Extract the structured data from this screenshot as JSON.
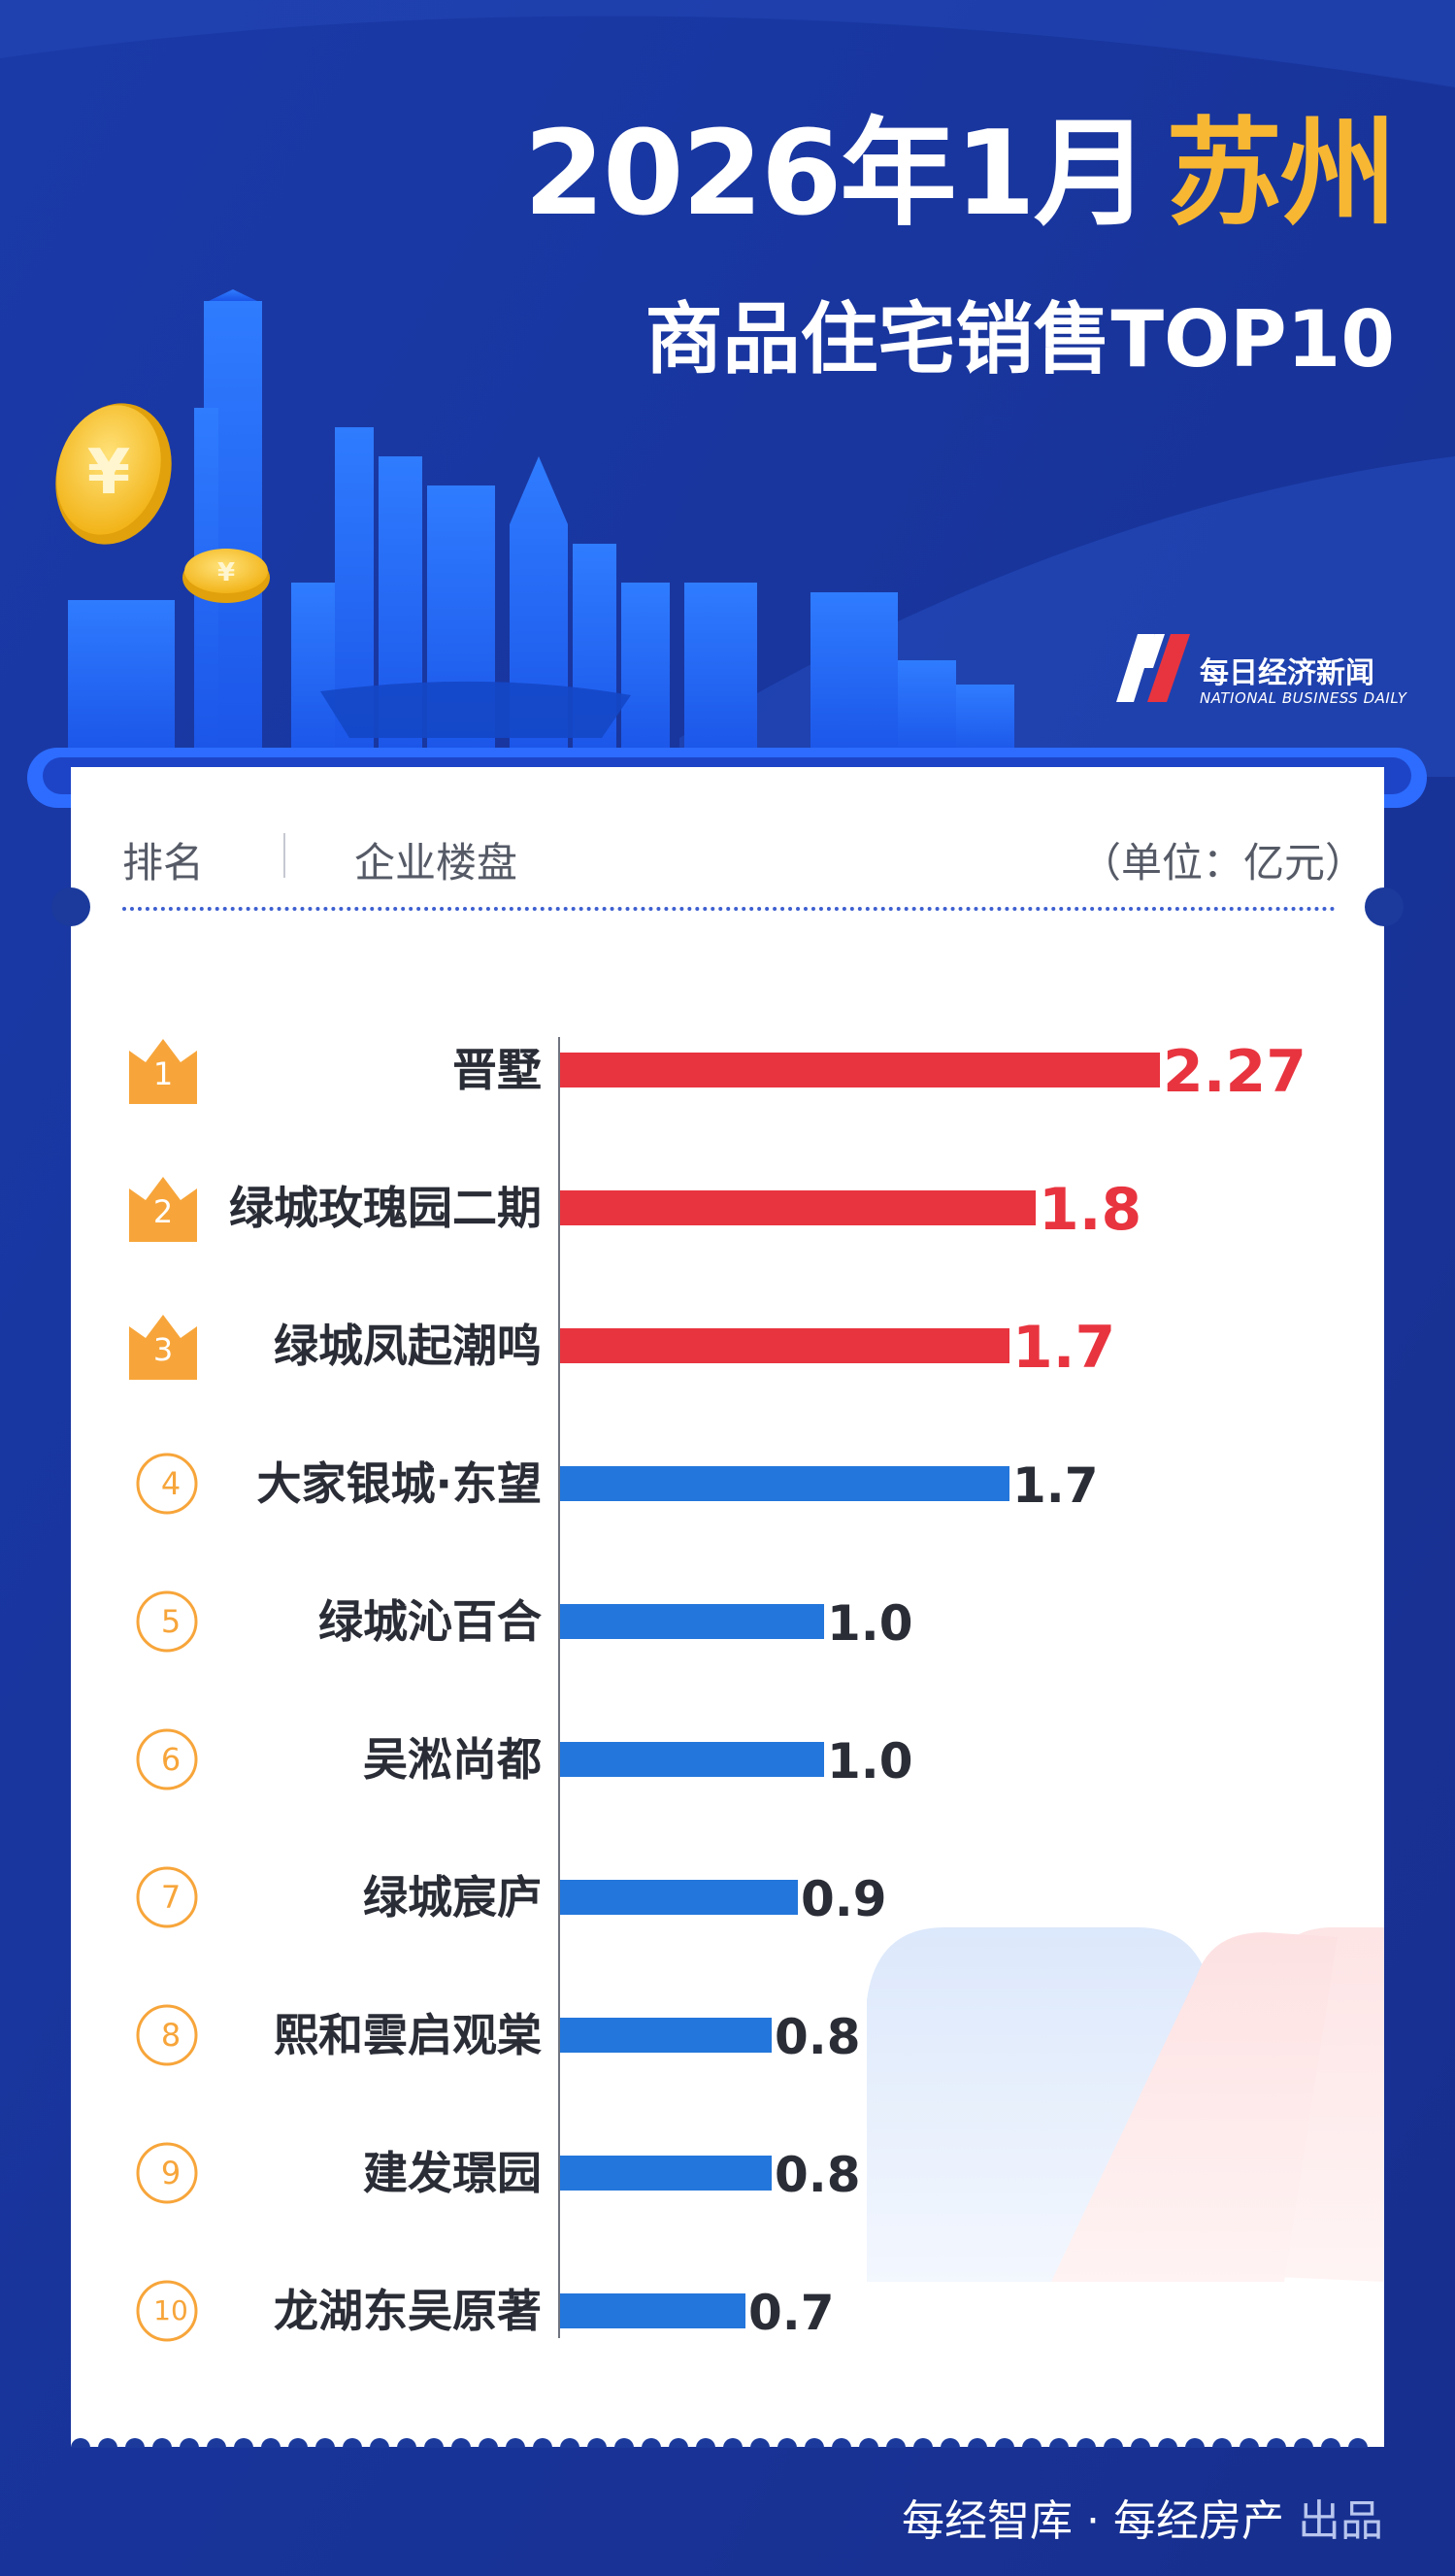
{
  "header": {
    "title_year_month": "2026年1月",
    "title_city": "苏州",
    "subtitle": "商品住宅销售TOP10"
  },
  "brand": {
    "name_cn": "每日经济新闻",
    "name_en": "NATIONAL BUSINESS DAILY"
  },
  "table_header": {
    "rank_label": "排名",
    "name_label": "企业楼盘",
    "unit_label": "（单位：亿元）"
  },
  "footer": {
    "credit": "每经智库 · 每经房产",
    "suffix": "出品"
  },
  "colors": {
    "top3_bar": "#e8343f",
    "other_bar": "#2376db",
    "crown": "#f7a53a",
    "rank_circle": "#f7a53a",
    "background": "#1b3a9c"
  },
  "chart_data": {
    "type": "bar",
    "orientation": "horizontal",
    "title": "2026年1月苏州商品住宅销售TOP10",
    "unit": "亿元",
    "categories": [
      "晋墅",
      "绿城玫瑰园二期",
      "绿城凤起潮鸣",
      "大家银城·东望",
      "绿城沁百合",
      "吴淞尚都",
      "绿城宸庐",
      "熙和雲启观棠",
      "建发璟园",
      "龙湖东吴原著"
    ],
    "ranks": [
      "1",
      "2",
      "3",
      "4",
      "5",
      "6",
      "7",
      "8",
      "9",
      "10"
    ],
    "values": [
      2.27,
      1.8,
      1.7,
      1.7,
      1.0,
      1.0,
      0.9,
      0.8,
      0.8,
      0.7
    ],
    "value_labels": [
      "2.27",
      "1.8",
      "1.7",
      "1.7",
      "1.0",
      "1.0",
      "0.9",
      "0.8",
      "0.8",
      "0.7"
    ],
    "highlight_top": 3,
    "xlim": [
      0,
      2.27
    ],
    "grid": false
  }
}
